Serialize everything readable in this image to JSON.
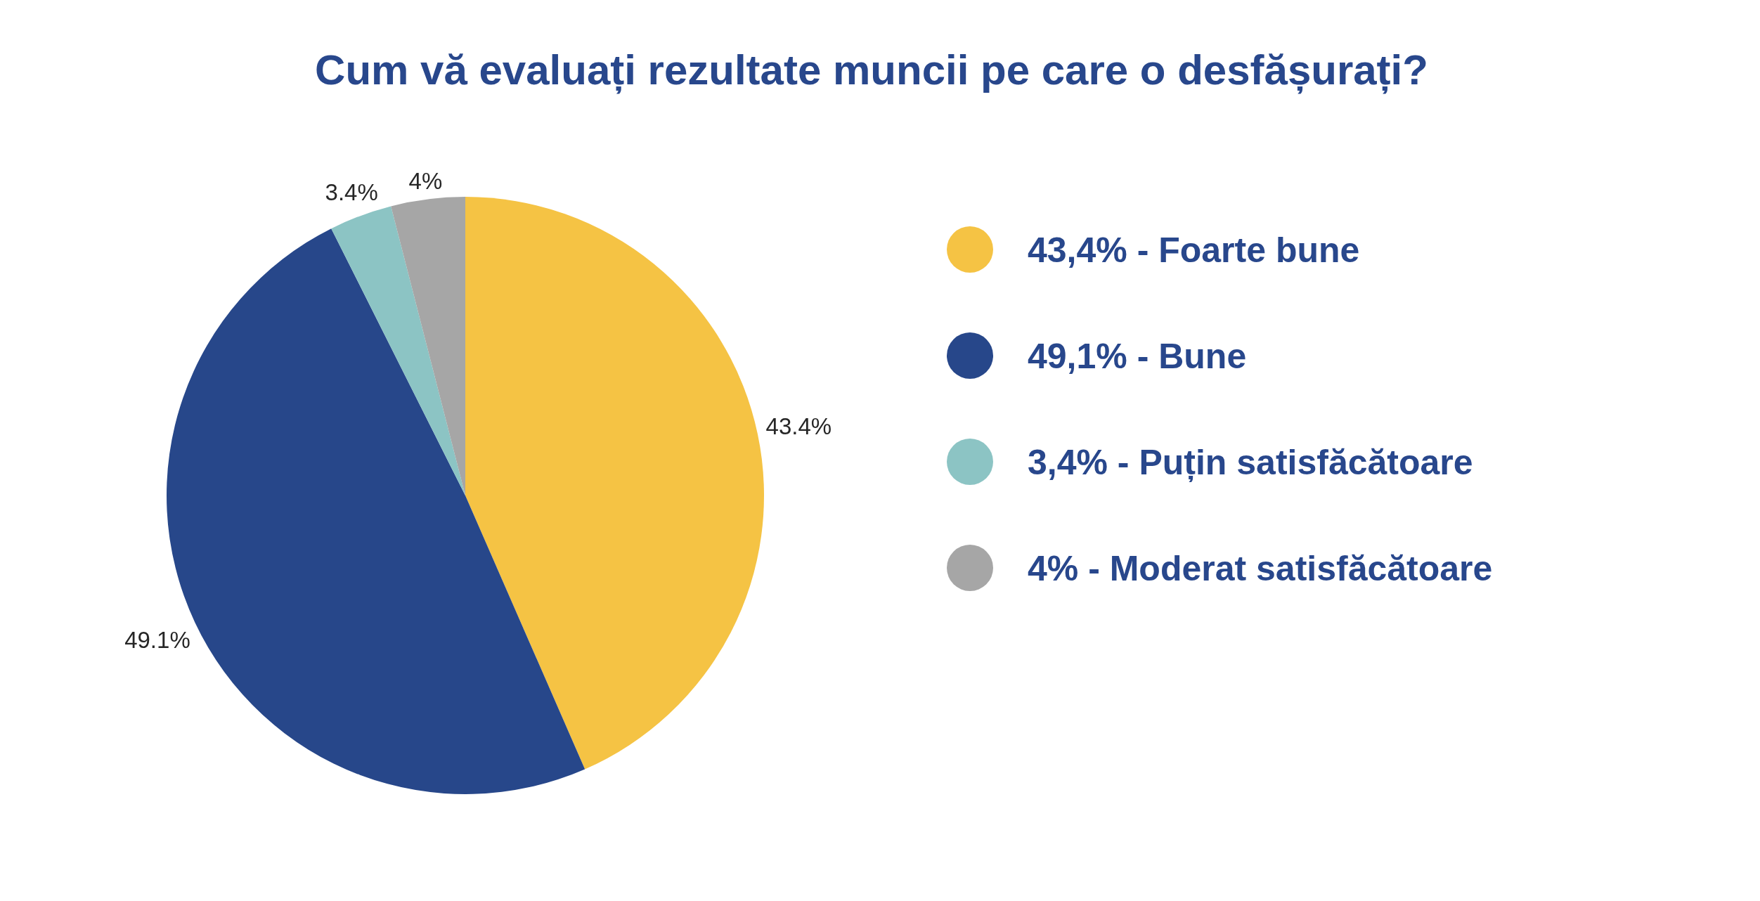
{
  "chart_data": {
    "type": "pie",
    "title": "Cum vă evaluați rezultate muncii pe care o desfășurați?",
    "categories": [
      "43,4% - Foarte bune",
      "49,1% - Bune",
      "3,4% - Puțin satisfăcătoare",
      "4% - Moderat satisfăcătoare"
    ],
    "values": [
      43.4,
      49.1,
      3.4,
      4
    ],
    "colors": [
      "#f5c344",
      "#27478a",
      "#8cc4c4",
      "#a6a6a6"
    ],
    "value_labels": [
      "43.4%",
      "49.1%",
      "3.4%",
      "4%"
    ],
    "legend": "right"
  }
}
